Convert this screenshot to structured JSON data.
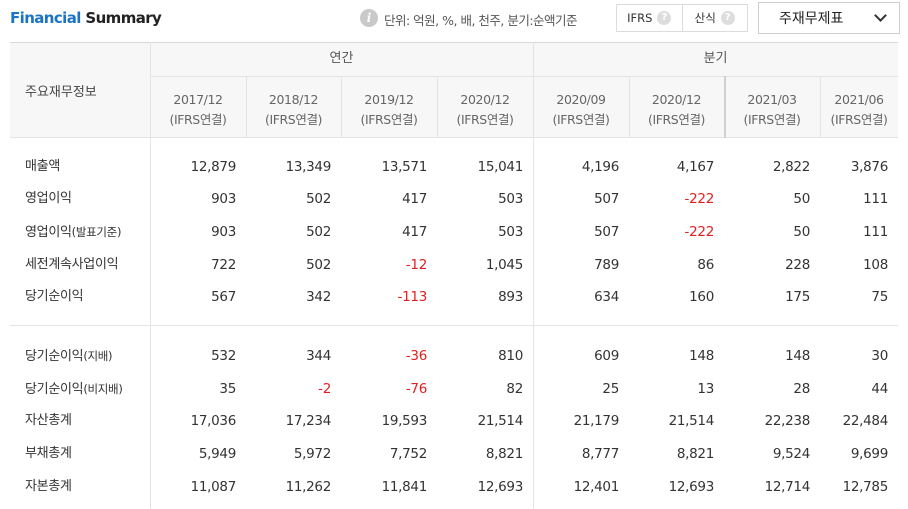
{
  "header": {
    "title_accent": "Financial",
    "title_rest": " Summary",
    "info_glyph": "i",
    "unit_text": "단위: 억원, %, 배, 천주, 분기:순액기준",
    "toggle_ifrs": "IFRS",
    "toggle_formula": "산식",
    "help_glyph": "?",
    "select_value": "주재무제표"
  },
  "table": {
    "row_header": "주요재무정보",
    "groups": {
      "annual": "연간",
      "quarterly": "분기"
    },
    "periods": [
      {
        "date": "2017/12",
        "basis": "(IFRS연결)"
      },
      {
        "date": "2018/12",
        "basis": "(IFRS연결)"
      },
      {
        "date": "2019/12",
        "basis": "(IFRS연결)"
      },
      {
        "date": "2020/12",
        "basis": "(IFRS연결)"
      },
      {
        "date": "2020/09",
        "basis": "(IFRS연결)"
      },
      {
        "date": "2020/12",
        "basis": "(IFRS연결)"
      },
      {
        "date": "2021/03",
        "basis": "(IFRS연결)"
      },
      {
        "date": "2021/06",
        "basis": "(IFRS연결)"
      }
    ],
    "rows": [
      {
        "label": "매출액",
        "sub": "",
        "values": [
          "12,879",
          "13,349",
          "13,571",
          "15,041",
          "4,196",
          "4,167",
          "2,822",
          "3,876"
        ]
      },
      {
        "label": "영업이익",
        "sub": "",
        "values": [
          "903",
          "502",
          "417",
          "503",
          "507",
          "-222",
          "50",
          "111"
        ]
      },
      {
        "label": "영업이익",
        "sub": "(발표기준)",
        "values": [
          "903",
          "502",
          "417",
          "503",
          "507",
          "-222",
          "50",
          "111"
        ]
      },
      {
        "label": "세전계속사업이익",
        "sub": "",
        "values": [
          "722",
          "502",
          "-12",
          "1,045",
          "789",
          "86",
          "228",
          "108"
        ]
      },
      {
        "label": "당기순이익",
        "sub": "",
        "values": [
          "567",
          "342",
          "-113",
          "893",
          "634",
          "160",
          "175",
          "75"
        ]
      },
      {
        "label": "당기순이익",
        "sub": "(지배)",
        "values": [
          "532",
          "344",
          "-36",
          "810",
          "609",
          "148",
          "148",
          "30"
        ]
      },
      {
        "label": "당기순이익",
        "sub": "(비지배)",
        "values": [
          "35",
          "-2",
          "-76",
          "82",
          "25",
          "13",
          "28",
          "44"
        ]
      },
      {
        "label": "자산총계",
        "sub": "",
        "values": [
          "17,036",
          "17,234",
          "19,593",
          "21,514",
          "21,179",
          "21,514",
          "22,238",
          "22,484"
        ]
      },
      {
        "label": "부채총계",
        "sub": "",
        "values": [
          "5,949",
          "5,972",
          "7,752",
          "8,821",
          "8,777",
          "8,821",
          "9,524",
          "9,699"
        ]
      },
      {
        "label": "자본총계",
        "sub": "",
        "values": [
          "11,087",
          "11,262",
          "11,841",
          "12,693",
          "12,401",
          "12,693",
          "12,714",
          "12,785"
        ]
      }
    ]
  },
  "colors": {
    "accent": "#1a73c7",
    "negative": "#e02020",
    "header_bg": "#f7f7f7"
  }
}
